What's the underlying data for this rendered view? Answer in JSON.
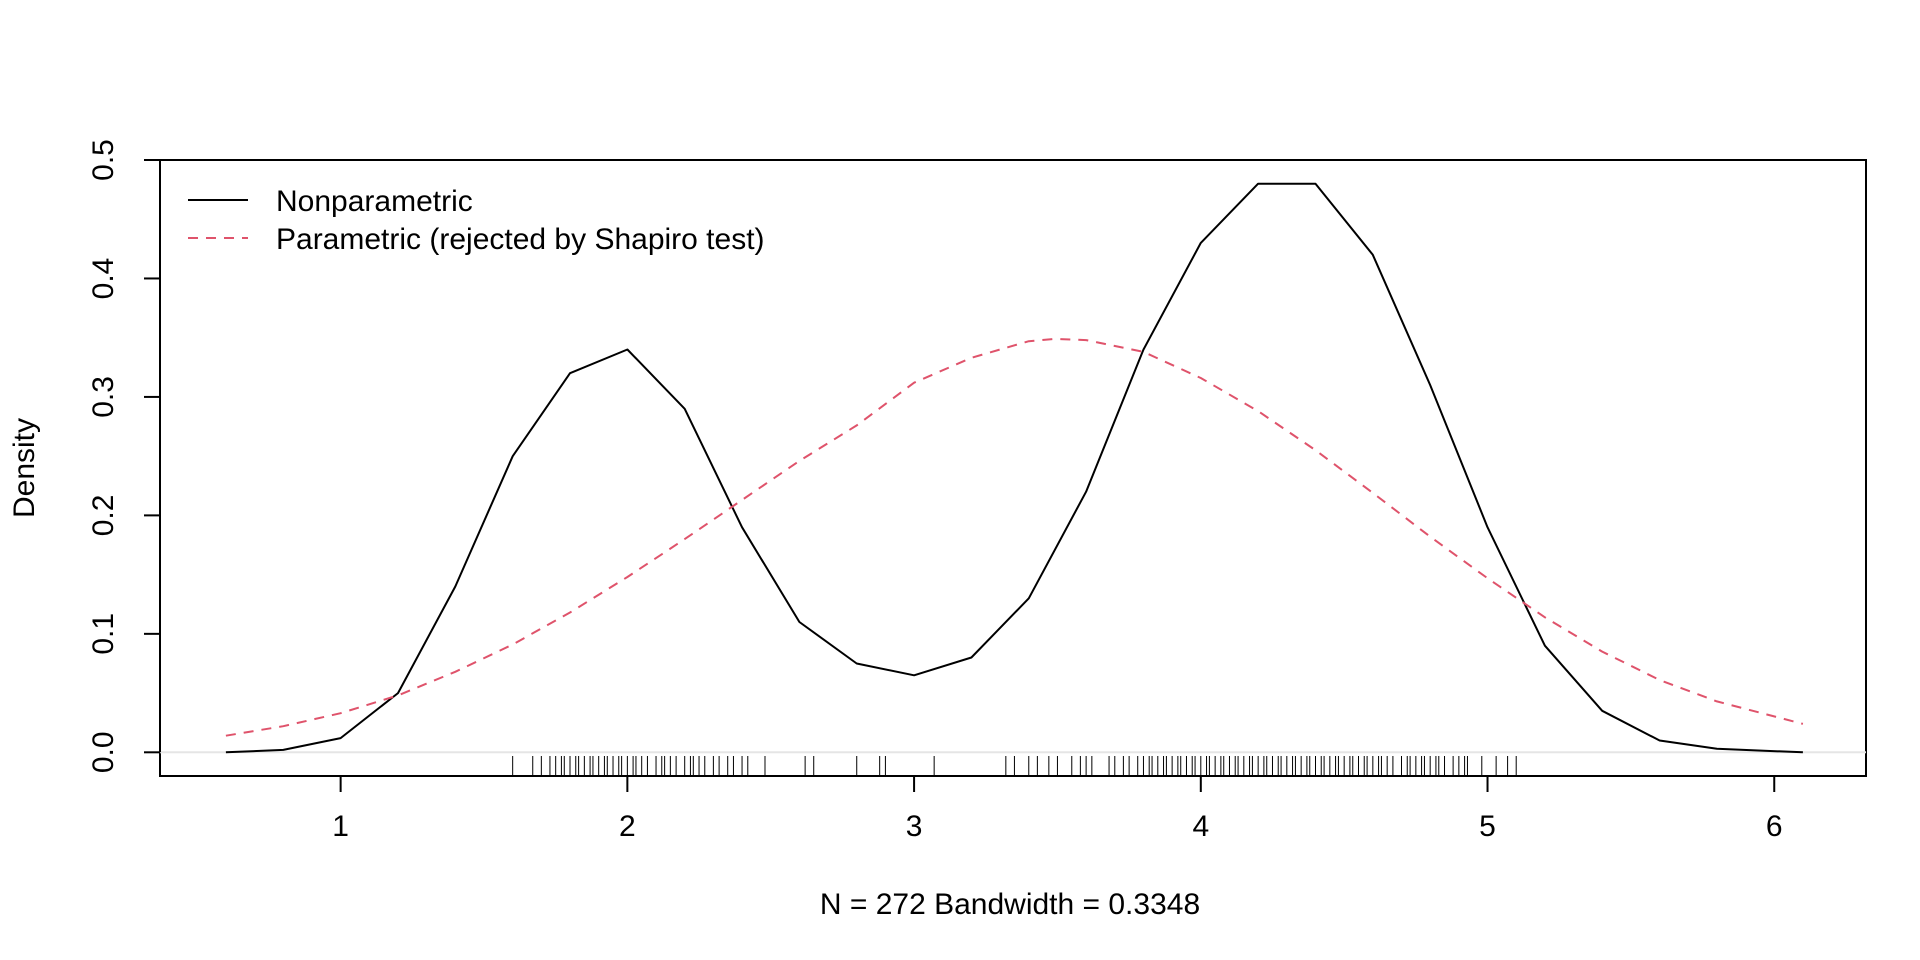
{
  "chart_data": {
    "type": "line",
    "title": "",
    "xlabel": "N = 272   Bandwidth = 0.3348",
    "ylabel": "Density",
    "xlim": [
      0.37,
      6.32
    ],
    "ylim": [
      -0.02,
      0.5
    ],
    "x_ticks": [
      1,
      2,
      3,
      4,
      5,
      6
    ],
    "y_ticks": [
      0.0,
      0.1,
      0.2,
      0.3,
      0.4,
      0.5
    ],
    "x_tick_labels": [
      "1",
      "2",
      "3",
      "4",
      "5",
      "6"
    ],
    "y_tick_labels": [
      "0.0",
      "0.1",
      "0.2",
      "0.3",
      "0.4",
      "0.5"
    ],
    "grid": false,
    "baseline": 0,
    "legend": {
      "position": "top-left",
      "entries": [
        {
          "label": "Nonparametric",
          "color": "#000000",
          "style": "solid"
        },
        {
          "label": "Parametric (rejected by Shapiro test)",
          "color": "#DF536B",
          "style": "dashed"
        }
      ]
    },
    "series": [
      {
        "name": "Nonparametric",
        "color": "#000000",
        "style": "solid",
        "x": [
          0.6,
          0.8,
          1.0,
          1.2,
          1.4,
          1.6,
          1.8,
          2.0,
          2.2,
          2.4,
          2.6,
          2.8,
          3.0,
          3.2,
          3.4,
          3.6,
          3.8,
          4.0,
          4.2,
          4.4,
          4.6,
          4.8,
          5.0,
          5.2,
          5.4,
          5.6,
          5.8,
          6.1
        ],
        "y": [
          0.0,
          0.002,
          0.012,
          0.05,
          0.14,
          0.25,
          0.32,
          0.34,
          0.29,
          0.19,
          0.11,
          0.075,
          0.065,
          0.08,
          0.13,
          0.22,
          0.34,
          0.43,
          0.48,
          0.48,
          0.42,
          0.31,
          0.19,
          0.09,
          0.035,
          0.01,
          0.003,
          0.0
        ]
      },
      {
        "name": "Parametric (rejected by Shapiro test)",
        "color": "#DF536B",
        "style": "dashed",
        "x": [
          0.6,
          0.8,
          1.0,
          1.2,
          1.4,
          1.6,
          1.8,
          2.0,
          2.2,
          2.4,
          2.6,
          2.8,
          3.0,
          3.2,
          3.4,
          3.49,
          3.6,
          3.8,
          4.0,
          4.2,
          4.4,
          4.6,
          4.8,
          5.0,
          5.2,
          5.4,
          5.6,
          5.8,
          6.1
        ],
        "y": [
          0.014,
          0.022,
          0.033,
          0.048,
          0.068,
          0.091,
          0.118,
          0.148,
          0.18,
          0.213,
          0.246,
          0.276,
          0.312,
          0.333,
          0.347,
          0.349,
          0.348,
          0.338,
          0.316,
          0.288,
          0.255,
          0.219,
          0.182,
          0.147,
          0.114,
          0.085,
          0.061,
          0.043,
          0.024
        ]
      }
    ],
    "rug": {
      "color": "#000000",
      "values": [
        1.6,
        1.67,
        1.7,
        1.73,
        1.75,
        1.77,
        1.78,
        1.8,
        1.82,
        1.83,
        1.85,
        1.87,
        1.88,
        1.9,
        1.92,
        1.93,
        1.95,
        1.97,
        1.98,
        2.0,
        2.02,
        2.03,
        2.05,
        2.07,
        2.1,
        2.12,
        2.13,
        2.15,
        2.17,
        2.2,
        2.22,
        2.23,
        2.25,
        2.27,
        2.3,
        2.32,
        2.35,
        2.37,
        2.4,
        2.42,
        2.48,
        2.62,
        2.65,
        2.8,
        2.88,
        2.9,
        3.07,
        3.32,
        3.35,
        3.4,
        3.43,
        3.47,
        3.5,
        3.55,
        3.58,
        3.6,
        3.62,
        3.68,
        3.7,
        3.73,
        3.75,
        3.78,
        3.8,
        3.82,
        3.83,
        3.85,
        3.87,
        3.88,
        3.9,
        3.92,
        3.93,
        3.95,
        3.97,
        3.98,
        4.0,
        4.02,
        4.03,
        4.05,
        4.07,
        4.08,
        4.1,
        4.12,
        4.13,
        4.15,
        4.17,
        4.18,
        4.2,
        4.22,
        4.23,
        4.25,
        4.27,
        4.28,
        4.3,
        4.32,
        4.33,
        4.35,
        4.37,
        4.38,
        4.4,
        4.42,
        4.43,
        4.45,
        4.47,
        4.48,
        4.5,
        4.52,
        4.53,
        4.55,
        4.57,
        4.58,
        4.6,
        4.62,
        4.63,
        4.65,
        4.67,
        4.7,
        4.72,
        4.73,
        4.75,
        4.77,
        4.78,
        4.8,
        4.82,
        4.83,
        4.85,
        4.88,
        4.9,
        4.92,
        4.93,
        4.98,
        5.03,
        5.07,
        5.1
      ]
    }
  }
}
